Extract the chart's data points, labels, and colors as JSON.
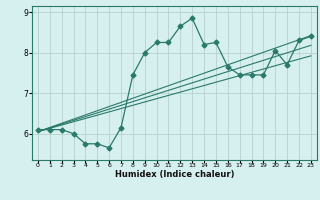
{
  "xlabel": "Humidex (Indice chaleur)",
  "ylabel": "",
  "bg_color": "#d6efef",
  "line_color": "#2a7a6a",
  "grid_color": "#b8d0ce",
  "x_data": [
    0,
    1,
    2,
    3,
    4,
    5,
    6,
    7,
    8,
    9,
    10,
    11,
    12,
    13,
    14,
    15,
    16,
    17,
    18,
    19,
    20,
    21,
    22,
    23
  ],
  "y_main": [
    6.1,
    6.1,
    6.1,
    6.0,
    5.75,
    5.75,
    5.65,
    6.15,
    7.45,
    8.0,
    8.25,
    8.25,
    8.65,
    8.85,
    8.2,
    8.25,
    7.65,
    7.45,
    7.45,
    7.45,
    8.05,
    7.7,
    8.3,
    8.4
  ],
  "xlim": [
    -0.5,
    23.5
  ],
  "ylim": [
    5.35,
    9.15
  ],
  "yticks": [
    6,
    7,
    8,
    9
  ],
  "xticks": [
    0,
    1,
    2,
    3,
    4,
    5,
    6,
    7,
    8,
    9,
    10,
    11,
    12,
    13,
    14,
    15,
    16,
    17,
    18,
    19,
    20,
    21,
    22,
    23
  ],
  "regression_lines": [
    {
      "x0": 0,
      "y0": 6.05,
      "x1": 23,
      "y1": 8.42
    },
    {
      "x0": 0,
      "y0": 6.05,
      "x1": 23,
      "y1": 8.18
    },
    {
      "x0": 0,
      "y0": 6.05,
      "x1": 23,
      "y1": 7.92
    }
  ]
}
